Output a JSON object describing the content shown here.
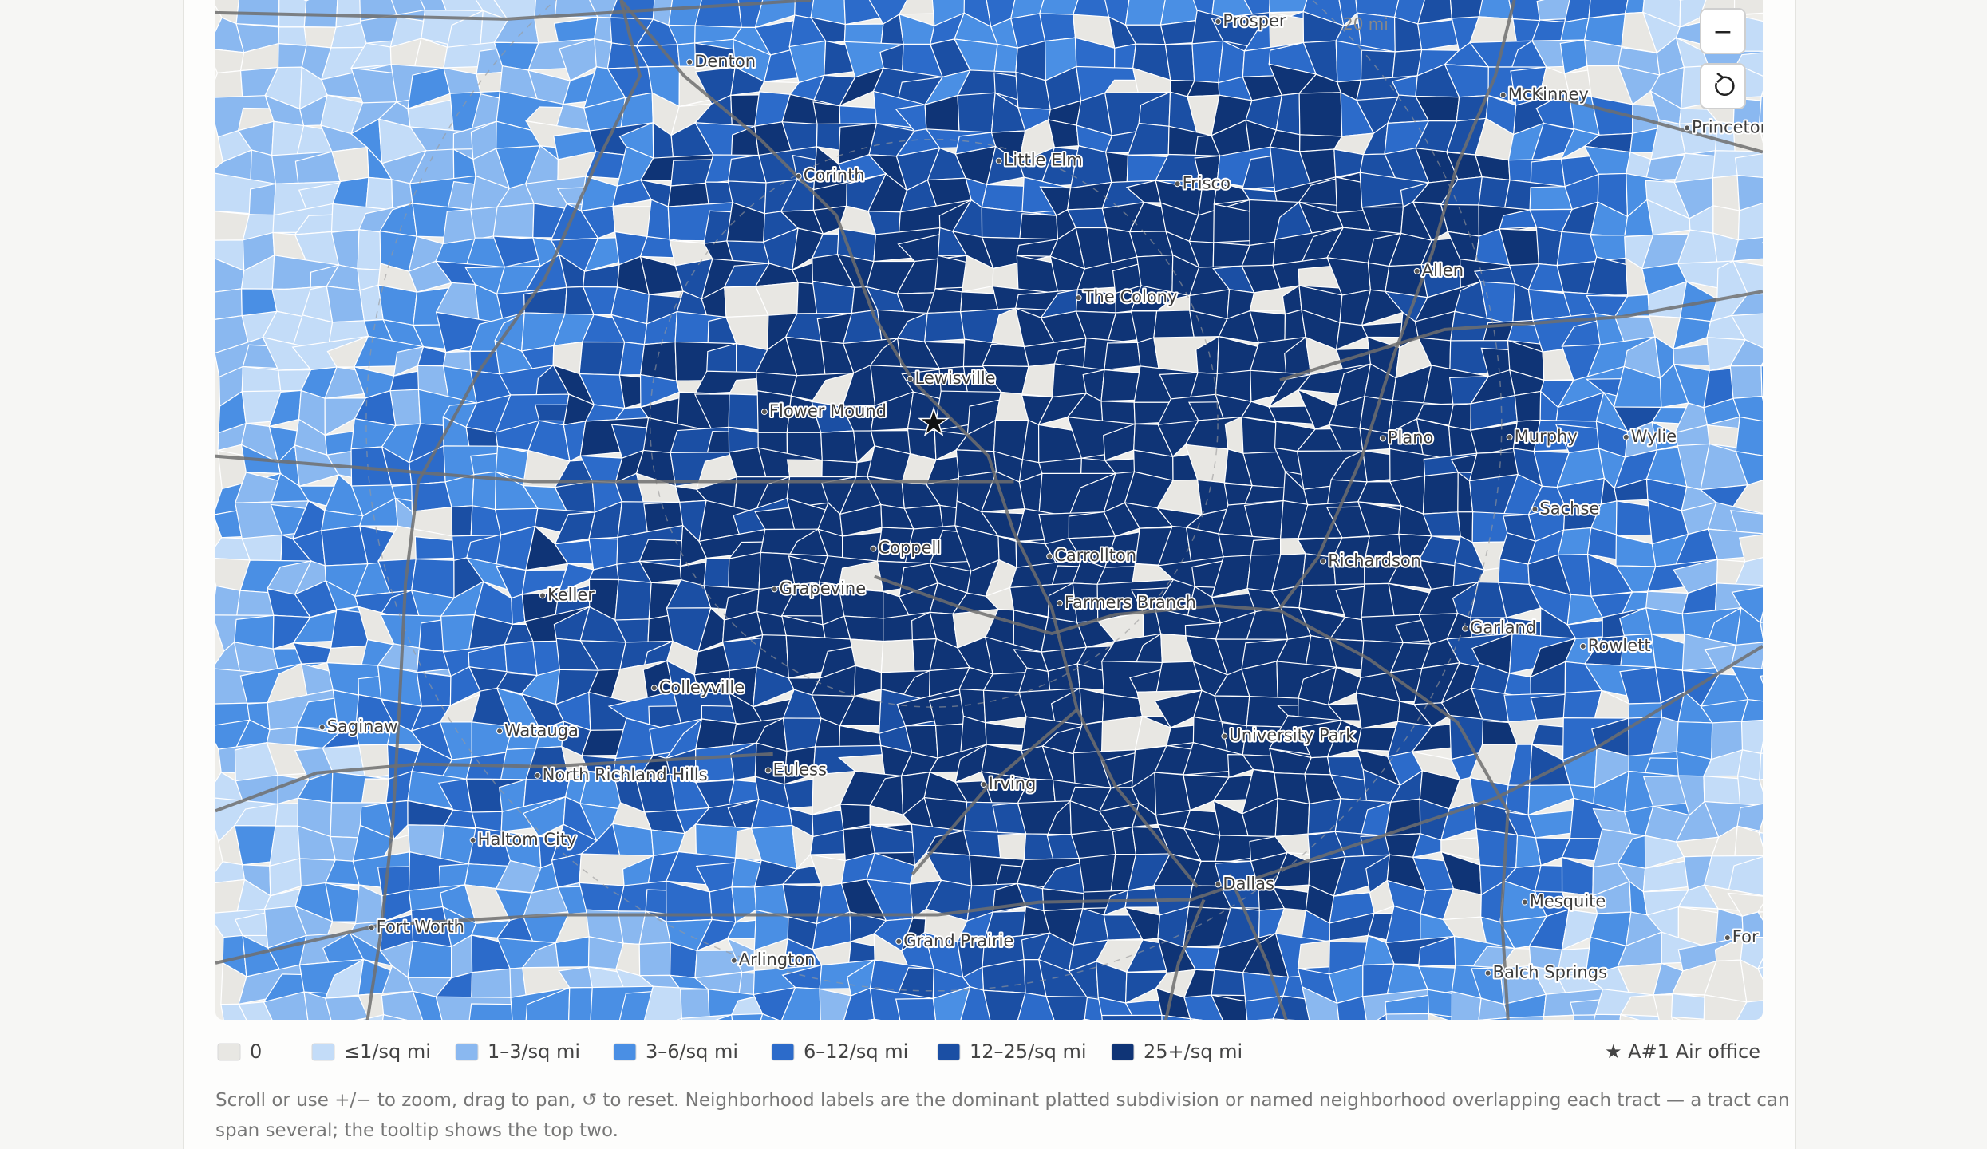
{
  "map": {
    "places": [
      "Denton",
      "Prosper",
      "McKinney",
      "Princeton",
      "Corinth",
      "Little Elm",
      "Frisco",
      "Allen",
      "The Colony",
      "Lewisville",
      "Flower Mound",
      "Plano",
      "Murphy",
      "Wylie",
      "Sachse",
      "Coppell",
      "Carrollton",
      "Richardson",
      "Keller",
      "Grapevine",
      "Farmers Branch",
      "Garland",
      "Rowlett",
      "Colleyville",
      "Saginaw",
      "Watauga",
      "University Park",
      "North Richland Hills",
      "Euless",
      "Irving",
      "Haltom City",
      "Dallas",
      "Mesquite",
      "Fort Worth",
      "Grand Prairie",
      "Arlington",
      "Balch Springs",
      "For"
    ],
    "distance_label": "20 mi",
    "office_marker": "★"
  },
  "controls": {
    "zoom_out": "−"
  },
  "legend": {
    "items": [
      {
        "label": "0",
        "color": "#e8e7e3"
      },
      {
        "label": "≤1/sq mi",
        "color": "#c3dcf8"
      },
      {
        "label": "1–3/sq mi",
        "color": "#8ab8f0"
      },
      {
        "label": "3–6/sq mi",
        "color": "#4a8fe4"
      },
      {
        "label": "6–12/sq mi",
        "color": "#2c6bca"
      },
      {
        "label": "12–25/sq mi",
        "color": "#1b4fa4"
      },
      {
        "label": "25+/sq mi",
        "color": "#0f3476"
      }
    ],
    "office": "★ A#1 Air office"
  },
  "note": [
    "Scroll or use +/− to zoom, drag to pan, ↺ to reset. Neighborhood labels are the dominant platted subdivision or named neighborhood overlapping each tract — a tract can",
    "span several; the tooltip shows the top two."
  ]
}
